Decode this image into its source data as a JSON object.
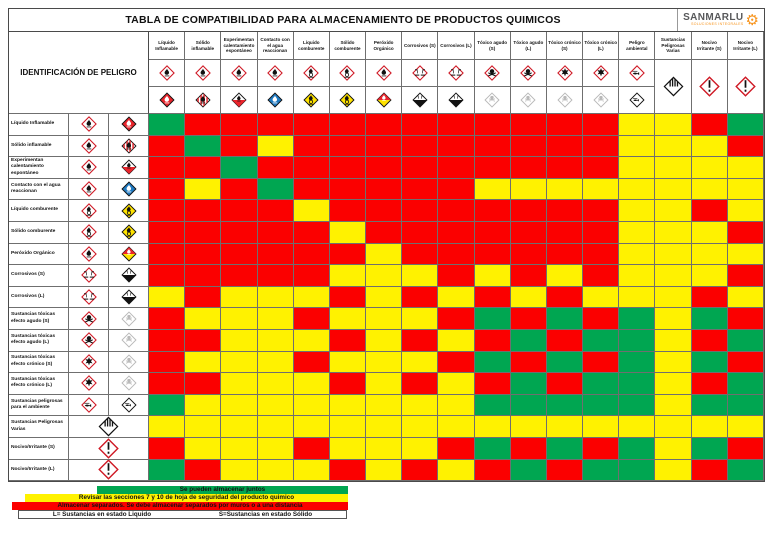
{
  "title": "TABLA DE COMPATIBILIDAD PARA ALMACENAMIENTO DE PRODUCTOS QUIMICOS",
  "logo": {
    "name": "SANMARLU",
    "subtitle": "SOLUCIONES INTEGRALES",
    "accent": "#F7941D",
    "icon": "gear-icon"
  },
  "corner_label": "IDENTIFICACIÓN DE PELIGRO",
  "colors": {
    "compatible": "#00A651",
    "caution": "#FFF200",
    "incompatible": "#FB0000"
  },
  "hazards": [
    {
      "col_label": "Líquido Inflamable",
      "row_label": "Líquido Inflamable",
      "ghs_icon": "ghs-flame-icon",
      "transport_icon": "transport-class3-flammable-liquid-icon"
    },
    {
      "col_label": "Sólido inflamable",
      "row_label": "Sólido inflamable",
      "ghs_icon": "ghs-flame-icon",
      "transport_icon": "transport-class41-flammable-solid-icon"
    },
    {
      "col_label": "Experimentan calentamiento espontáneo",
      "row_label": "Experimentan calentamiento espontáneo",
      "ghs_icon": "ghs-flame-icon",
      "transport_icon": "transport-class42-spontaneously-combustible-icon"
    },
    {
      "col_label": "Contacto con el agua reaccionan",
      "row_label": "Contacto con el agua reaccionan",
      "ghs_icon": "ghs-flame-icon",
      "transport_icon": "transport-class43-dangerous-when-wet-icon"
    },
    {
      "col_label": "Líquido comburente",
      "row_label": "Líquido comburente",
      "ghs_icon": "ghs-flame-over-circle-icon",
      "transport_icon": "transport-class51-oxidizer-icon"
    },
    {
      "col_label": "Sólido comburente",
      "row_label": "Sólido comburente",
      "ghs_icon": "ghs-flame-over-circle-icon",
      "transport_icon": "transport-class51-oxidizer-icon"
    },
    {
      "col_label": "Peróxido Orgánico",
      "row_label": "Peróxido Orgánico",
      "ghs_icon": "ghs-flame-icon",
      "transport_icon": "transport-class52-organic-peroxide-icon"
    },
    {
      "col_label": "Corrosivos (S)",
      "row_label": "Corrosivos (S)",
      "ghs_icon": "ghs-corrosion-icon",
      "transport_icon": "transport-class8-corrosive-icon"
    },
    {
      "col_label": "Corrosivos (L)",
      "row_label": "Corrosivos (L)",
      "ghs_icon": "ghs-corrosion-icon",
      "transport_icon": "transport-class8-corrosive-icon"
    },
    {
      "col_label": "Tóxico agudo (S)",
      "row_label": "Sustancias tóxicas efecto agudo (S)",
      "ghs_icon": "ghs-skull-icon",
      "transport_icon": "transport-faded-icon"
    },
    {
      "col_label": "Tóxico agudo (L)",
      "row_label": "Sustancias tóxicas efecto agudo (L)",
      "ghs_icon": "ghs-skull-icon",
      "transport_icon": "transport-faded-icon"
    },
    {
      "col_label": "Tóxico crónico (S)",
      "row_label": "Sustancias tóxicas efecto crónico (S)",
      "ghs_icon": "ghs-health-hazard-icon",
      "transport_icon": "transport-faded-icon"
    },
    {
      "col_label": "Tóxico crónico (L)",
      "row_label": "Sustancias tóxicas efecto crónico (L)",
      "ghs_icon": "ghs-health-hazard-icon",
      "transport_icon": "transport-faded-icon"
    },
    {
      "col_label": "Peligro ambiental",
      "row_label": "Sustancias peligrosas para el ambiente",
      "ghs_icon": "ghs-environment-icon",
      "transport_icon": "transport-environment-icon"
    },
    {
      "col_label": "Sustancias Peligrosas Varias",
      "row_label": "Sustancias Peligrosas Varias",
      "ghs_icon": null,
      "transport_icon": "transport-class9-miscellaneous-icon"
    },
    {
      "col_label": "Nocivo Irritante (S)",
      "row_label": "Nocivo/Irritante (S)",
      "ghs_icon": "ghs-exclamation-icon",
      "transport_icon": null
    },
    {
      "col_label": "Nocivo Irritante (L)",
      "row_label": "Nocivo/Irritante (L)",
      "ghs_icon": "ghs-exclamation-icon",
      "transport_icon": null
    }
  ],
  "matrix": [
    [
      "G",
      "R",
      "R",
      "R",
      "R",
      "R",
      "R",
      "R",
      "R",
      "R",
      "R",
      "R",
      "R",
      "Y",
      "Y",
      "R",
      "G"
    ],
    [
      "R",
      "G",
      "R",
      "Y",
      "R",
      "R",
      "R",
      "R",
      "R",
      "R",
      "R",
      "R",
      "R",
      "Y",
      "Y",
      "Y",
      "R"
    ],
    [
      "R",
      "R",
      "G",
      "R",
      "R",
      "R",
      "R",
      "R",
      "R",
      "R",
      "R",
      "R",
      "R",
      "Y",
      "Y",
      "Y",
      "Y"
    ],
    [
      "R",
      "Y",
      "R",
      "G",
      "R",
      "R",
      "R",
      "R",
      "R",
      "Y",
      "Y",
      "Y",
      "Y",
      "Y",
      "Y",
      "Y",
      "Y"
    ],
    [
      "R",
      "R",
      "R",
      "R",
      "Y",
      "R",
      "R",
      "R",
      "R",
      "R",
      "R",
      "R",
      "R",
      "Y",
      "Y",
      "R",
      "Y"
    ],
    [
      "R",
      "R",
      "R",
      "R",
      "R",
      "Y",
      "R",
      "R",
      "R",
      "R",
      "R",
      "R",
      "R",
      "Y",
      "Y",
      "Y",
      "R"
    ],
    [
      "R",
      "R",
      "R",
      "R",
      "R",
      "R",
      "Y",
      "R",
      "R",
      "R",
      "R",
      "R",
      "R",
      "Y",
      "Y",
      "Y",
      "Y"
    ],
    [
      "R",
      "R",
      "R",
      "R",
      "R",
      "Y",
      "Y",
      "Y",
      "R",
      "Y",
      "R",
      "Y",
      "R",
      "Y",
      "Y",
      "Y",
      "R"
    ],
    [
      "Y",
      "R",
      "Y",
      "Y",
      "Y",
      "R",
      "Y",
      "R",
      "Y",
      "R",
      "Y",
      "R",
      "Y",
      "Y",
      "Y",
      "R",
      "Y"
    ],
    [
      "R",
      "Y",
      "Y",
      "Y",
      "R",
      "Y",
      "Y",
      "Y",
      "R",
      "G",
      "R",
      "G",
      "R",
      "G",
      "Y",
      "G",
      "R"
    ],
    [
      "R",
      "R",
      "Y",
      "Y",
      "Y",
      "R",
      "Y",
      "R",
      "Y",
      "R",
      "G",
      "R",
      "G",
      "G",
      "Y",
      "R",
      "G"
    ],
    [
      "R",
      "Y",
      "Y",
      "Y",
      "R",
      "Y",
      "Y",
      "Y",
      "R",
      "G",
      "R",
      "G",
      "R",
      "G",
      "Y",
      "G",
      "R"
    ],
    [
      "R",
      "R",
      "Y",
      "Y",
      "Y",
      "R",
      "Y",
      "R",
      "Y",
      "R",
      "G",
      "R",
      "G",
      "G",
      "Y",
      "R",
      "G"
    ],
    [
      "G",
      "Y",
      "Y",
      "Y",
      "Y",
      "Y",
      "Y",
      "Y",
      "Y",
      "G",
      "G",
      "G",
      "G",
      "G",
      "Y",
      "G",
      "G"
    ],
    [
      "Y",
      "Y",
      "Y",
      "Y",
      "Y",
      "Y",
      "Y",
      "Y",
      "Y",
      "Y",
      "Y",
      "Y",
      "Y",
      "Y",
      "Y",
      "Y",
      "Y"
    ],
    [
      "R",
      "Y",
      "Y",
      "Y",
      "R",
      "Y",
      "Y",
      "Y",
      "R",
      "G",
      "R",
      "G",
      "R",
      "G",
      "Y",
      "G",
      "R"
    ],
    [
      "G",
      "R",
      "Y",
      "Y",
      "Y",
      "R",
      "Y",
      "R",
      "Y",
      "R",
      "G",
      "R",
      "G",
      "G",
      "Y",
      "R",
      "G"
    ]
  ],
  "legend": [
    {
      "level": "compatible",
      "text": "Se pueden almacenar juntos"
    },
    {
      "level": "caution",
      "text": "Revisar las secciones 7 y 10 de hoja de seguridad del producto quimico"
    },
    {
      "level": "incompatible",
      "text": "Almacenar separados. Se debe almacenar separados por muros o a una distancia"
    }
  ],
  "legend_note": {
    "left": "L= Sustancias en estado Liquido",
    "right": "S=Sustancias en estado Sólido"
  }
}
